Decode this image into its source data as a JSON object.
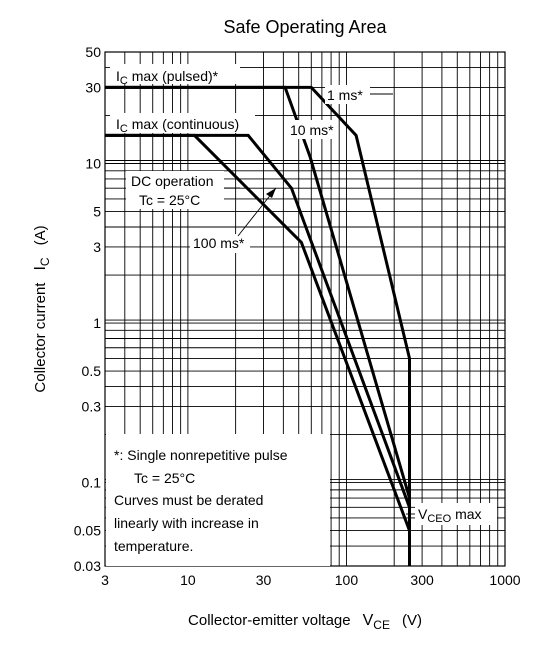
{
  "chart_data": {
    "type": "line",
    "title": "Safe Operating Area",
    "xlabel": "Collector-emitter voltage",
    "xlabel_symbol": "V",
    "xlabel_symbol_sub": "CE",
    "xlabel_unit": "(V)",
    "ylabel": "Collector current",
    "ylabel_symbol": "I",
    "ylabel_symbol_sub": "C",
    "ylabel_unit": "(A)",
    "x_scale": "log",
    "y_scale": "log",
    "xlim": [
      3,
      1000
    ],
    "ylim": [
      0.03,
      50
    ],
    "x_ticks": [
      "3",
      "10",
      "30",
      "100",
      "300",
      "1000"
    ],
    "y_ticks": [
      "0.03",
      "0.05",
      "0.1",
      "0.3",
      "0.5",
      "1",
      "3",
      "5",
      "10",
      "30",
      "50"
    ],
    "grid": true,
    "series": [
      {
        "name": "1 ms*",
        "x": [
          3,
          60,
          115,
          250,
          250
        ],
        "y": [
          30,
          30,
          15,
          0.6,
          0.03
        ]
      },
      {
        "name": "10 ms*",
        "x": [
          3,
          41,
          59,
          250,
          250
        ],
        "y": [
          30,
          30,
          11,
          0.08,
          0.03
        ]
      },
      {
        "name": "DC operation",
        "x": [
          3,
          24,
          45,
          250,
          250
        ],
        "y": [
          15,
          15,
          7,
          0.07,
          0.03
        ]
      },
      {
        "name": "100 ms*",
        "x": [
          3,
          11,
          52,
          250,
          250
        ],
        "y": [
          15,
          15,
          3.2,
          0.05,
          0.03
        ]
      }
    ],
    "annotations": {
      "ic_pulsed": {
        "prefix": "I",
        "sub": "C",
        "rest": " max (pulsed)*"
      },
      "ic_continuous": {
        "prefix": "I",
        "sub": "C",
        "rest": " max (continuous)"
      },
      "ms1": "1 ms*",
      "ms10": "10 ms*",
      "dc_line1": "DC operation",
      "dc_line2": "Tc = 25°C",
      "ms100": "100 ms*",
      "vceo": {
        "prefix": "V",
        "sub": "CEO",
        "rest": " max"
      }
    },
    "note": {
      "line1": "*:  Single nonrepetitive pulse",
      "line2": "Tc = 25°C",
      "line3": "Curves must be derated",
      "line4": "linearly with increase in",
      "line5": "temperature."
    }
  }
}
